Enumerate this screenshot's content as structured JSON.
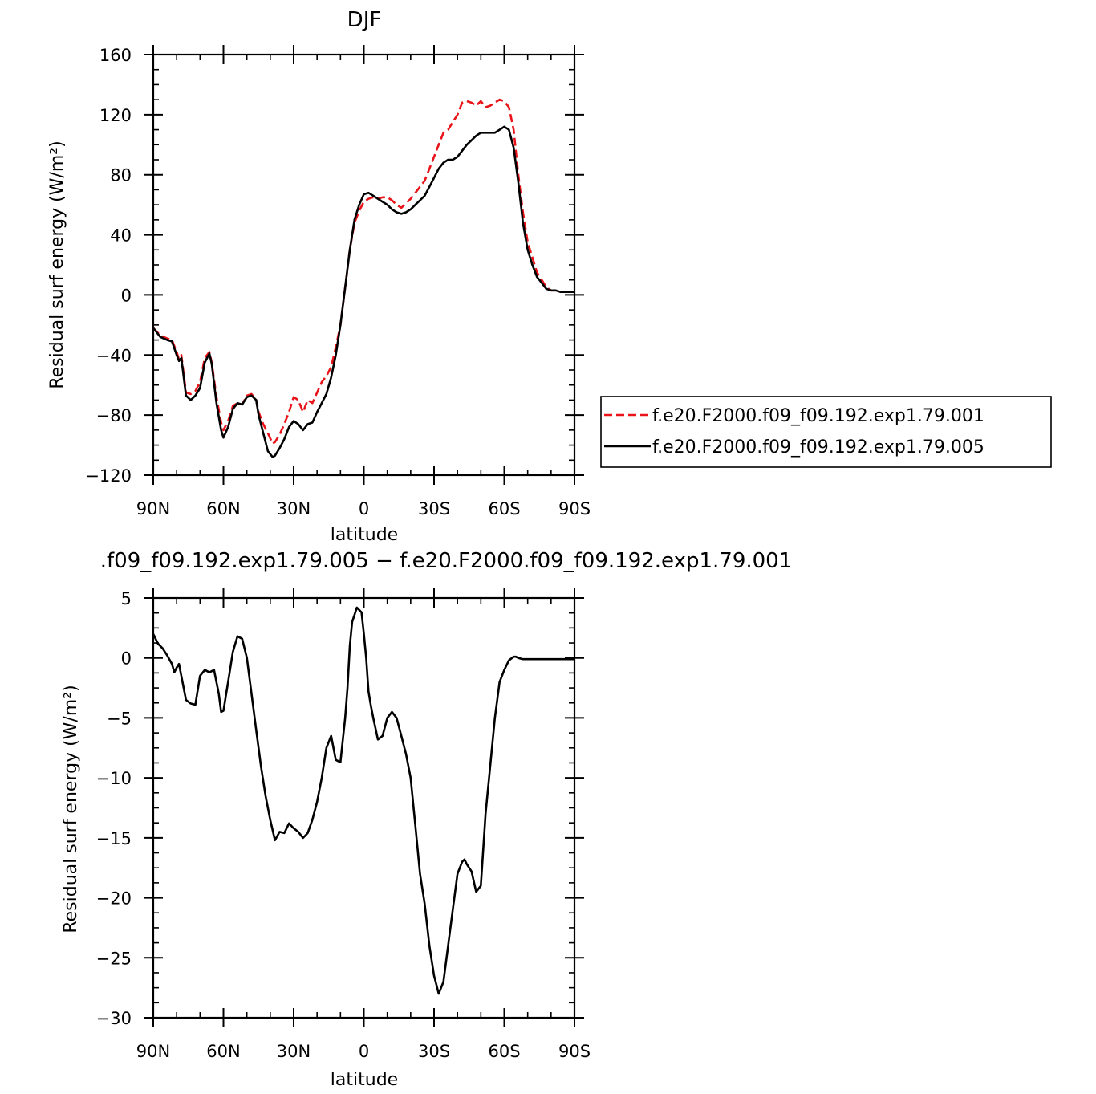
{
  "chart_data": [
    {
      "type": "line",
      "title": "DJF",
      "xlabel": "latitude",
      "ylabel": "Residual surf energy (W/m²)",
      "xlim": [
        90,
        -90
      ],
      "ylim": [
        -120,
        160
      ],
      "yticks": [
        160,
        120,
        80,
        40,
        0,
        -40,
        -80,
        -120
      ],
      "ytick_labels": [
        "160",
        "120",
        "80",
        "40",
        "0",
        "−40",
        "−80",
        "−120"
      ],
      "xticks": [
        90,
        60,
        30,
        0,
        -30,
        -60,
        -90
      ],
      "xtick_labels": [
        "90N",
        "60N",
        "30N",
        "0",
        "30S",
        "60S",
        "90S"
      ],
      "legend_position": "right-center, outside",
      "series": [
        {
          "name": "f.e20.F2000.f09_f09.192.exp1.79.001",
          "color": "#e8141a",
          "dash": "dashed",
          "x": [
            90,
            87,
            84,
            82,
            80,
            79,
            78,
            76,
            74,
            72,
            70,
            68,
            66,
            65,
            63,
            61,
            60,
            58,
            56,
            54,
            52,
            50,
            48,
            46,
            45,
            43,
            41,
            39,
            38,
            36,
            34,
            32,
            30,
            28,
            26,
            24,
            22,
            20,
            18,
            16,
            14,
            12,
            10,
            8,
            6,
            4,
            2,
            0,
            -2,
            -4,
            -6,
            -8,
            -10,
            -12,
            -14,
            -16,
            -18,
            -20,
            -22,
            -24,
            -26,
            -28,
            -30,
            -32,
            -34,
            -36,
            -38,
            -40,
            -42,
            -44,
            -46,
            -48,
            -50,
            -52,
            -54,
            -56,
            -58,
            -60,
            -62,
            -64,
            -66,
            -68,
            -70,
            -72,
            -74,
            -76,
            -78,
            -80,
            -82,
            -84,
            -86,
            -88,
            -90
          ],
          "y": [
            -22,
            -27,
            -29,
            -30,
            -38,
            -43,
            -40,
            -65,
            -66,
            -64,
            -58,
            -42,
            -38,
            -45,
            -68,
            -85,
            -90,
            -84,
            -74,
            -72,
            -73,
            -67,
            -66,
            -70,
            -78,
            -86,
            -92,
            -99,
            -98,
            -93,
            -86,
            -78,
            -68,
            -70,
            -78,
            -70,
            -72,
            -65,
            -58,
            -54,
            -48,
            -35,
            -20,
            5,
            30,
            48,
            56,
            62,
            64,
            65,
            64,
            65,
            65,
            63,
            60,
            58,
            61,
            64,
            68,
            72,
            76,
            84,
            92,
            100,
            108,
            110,
            115,
            120,
            128,
            129,
            128,
            126,
            129,
            125,
            126,
            128,
            130,
            129,
            125,
            110,
            80,
            55,
            35,
            25,
            15,
            10,
            5,
            3,
            3,
            2,
            2,
            2,
            2
          ]
        },
        {
          "name": "f.e20.F2000.f09_f09.192.exp1.79.005",
          "color": "#000000",
          "dash": "solid",
          "x": [
            90,
            87,
            84,
            82,
            80,
            79,
            78,
            76,
            74,
            72,
            70,
            68,
            66,
            65,
            63,
            61,
            60,
            58,
            56,
            54,
            52,
            50,
            48,
            46,
            45,
            43,
            41,
            39,
            38,
            36,
            34,
            32,
            30,
            28,
            26,
            24,
            22,
            20,
            18,
            16,
            14,
            12,
            10,
            8,
            6,
            4,
            2,
            0,
            -2,
            -4,
            -6,
            -8,
            -10,
            -12,
            -14,
            -16,
            -18,
            -20,
            -22,
            -24,
            -26,
            -28,
            -30,
            -32,
            -34,
            -36,
            -38,
            -40,
            -42,
            -44,
            -46,
            -48,
            -50,
            -52,
            -54,
            -56,
            -58,
            -60,
            -62,
            -64,
            -66,
            -68,
            -70,
            -72,
            -74,
            -76,
            -78,
            -80,
            -82,
            -84,
            -86,
            -88,
            -90
          ],
          "y": [
            -22,
            -28,
            -30,
            -31,
            -40,
            -44,
            -42,
            -67,
            -70,
            -67,
            -62,
            -45,
            -39,
            -46,
            -72,
            -90,
            -95,
            -88,
            -76,
            -72,
            -73,
            -68,
            -67,
            -70,
            -80,
            -92,
            -104,
            -108,
            -107,
            -102,
            -96,
            -88,
            -84,
            -86,
            -90,
            -86,
            -85,
            -78,
            -72,
            -66,
            -55,
            -40,
            -20,
            5,
            30,
            50,
            60,
            67,
            68,
            66,
            64,
            62,
            60,
            57,
            55,
            54,
            55,
            57,
            60,
            63,
            66,
            72,
            78,
            84,
            88,
            90,
            90,
            92,
            96,
            100,
            103,
            106,
            108,
            108,
            108,
            108,
            110,
            112,
            110,
            98,
            75,
            48,
            30,
            20,
            12,
            8,
            4,
            3,
            3,
            2,
            2,
            2,
            2
          ]
        }
      ]
    },
    {
      "type": "line",
      "title": ".f09_f09.192.exp1.79.005 − f.e20.F2000.f09_f09.192.exp1.79.001",
      "xlabel": "latitude",
      "ylabel": "Residual surf energy (W/m²)",
      "xlim": [
        90,
        -90
      ],
      "ylim": [
        -30,
        5
      ],
      "yticks": [
        5,
        0,
        -5,
        -10,
        -15,
        -20,
        -25,
        -30
      ],
      "ytick_labels": [
        "5",
        "0",
        "−5",
        "−10",
        "−15",
        "−20",
        "−25",
        "−30"
      ],
      "xticks": [
        90,
        60,
        30,
        0,
        -30,
        -60,
        -90
      ],
      "xtick_labels": [
        "90N",
        "60N",
        "30N",
        "0",
        "30S",
        "60S",
        "90S"
      ],
      "series": [
        {
          "color": "#000000",
          "dash": "solid",
          "x": [
            90,
            88,
            86,
            84,
            82,
            81,
            80,
            79,
            78,
            76,
            74,
            72,
            70,
            68,
            66,
            64,
            62,
            61,
            60,
            58,
            56,
            54,
            52,
            50,
            48,
            46,
            44,
            42,
            40,
            38,
            36,
            34,
            32,
            30,
            28,
            26,
            24,
            22,
            20,
            18,
            16,
            14,
            12,
            10,
            8,
            7,
            6,
            5,
            3,
            1,
            0,
            -1,
            -2,
            -3,
            -4,
            -6,
            -8,
            -10,
            -12,
            -14,
            -16,
            -18,
            -20,
            -22,
            -24,
            -26,
            -28,
            -30,
            -32,
            -34,
            -36,
            -38,
            -40,
            -42,
            -43,
            -44,
            -46,
            -48,
            -50,
            -52,
            -54,
            -56,
            -58,
            -60,
            -62,
            -64,
            -65,
            -66,
            -68,
            -70,
            -72,
            -74,
            -76,
            -78,
            -80,
            -84,
            -88,
            -90
          ],
          "y": [
            2,
            1.2,
            0.8,
            0.2,
            -0.5,
            -1.2,
            -0.8,
            -0.5,
            -1.5,
            -3.5,
            -3.8,
            -3.9,
            -1.5,
            -1.0,
            -1.2,
            -1.0,
            -3.0,
            -4.5,
            -4.4,
            -2.0,
            0.5,
            1.8,
            1.6,
            0,
            -3.0,
            -6.0,
            -9.0,
            -11.5,
            -13.5,
            -15.2,
            -14.5,
            -14.6,
            -13.8,
            -14.2,
            -14.5,
            -15.0,
            -14.6,
            -13.5,
            -12.0,
            -10.0,
            -7.5,
            -6.5,
            -8.5,
            -8.7,
            -5.0,
            -2.5,
            1.0,
            3.0,
            4.2,
            3.8,
            2.0,
            0,
            -2.8,
            -4.0,
            -5.0,
            -6.8,
            -6.5,
            -5.0,
            -4.5,
            -5.0,
            -6.5,
            -8.0,
            -10.0,
            -14.0,
            -18.0,
            -20.5,
            -24.0,
            -26.5,
            -28.0,
            -27.0,
            -24.0,
            -21.0,
            -18.0,
            -17.0,
            -16.8,
            -17.2,
            -17.8,
            -19.5,
            -19.0,
            -13.0,
            -9.0,
            -5.0,
            -2.0,
            -1.0,
            -0.2,
            0.1,
            0.1,
            0,
            -0.1,
            -0.1,
            -0.1,
            -0.1,
            -0.1,
            -0.1,
            -0.1,
            -0.1,
            -0.1,
            -0.1
          ]
        }
      ]
    }
  ]
}
